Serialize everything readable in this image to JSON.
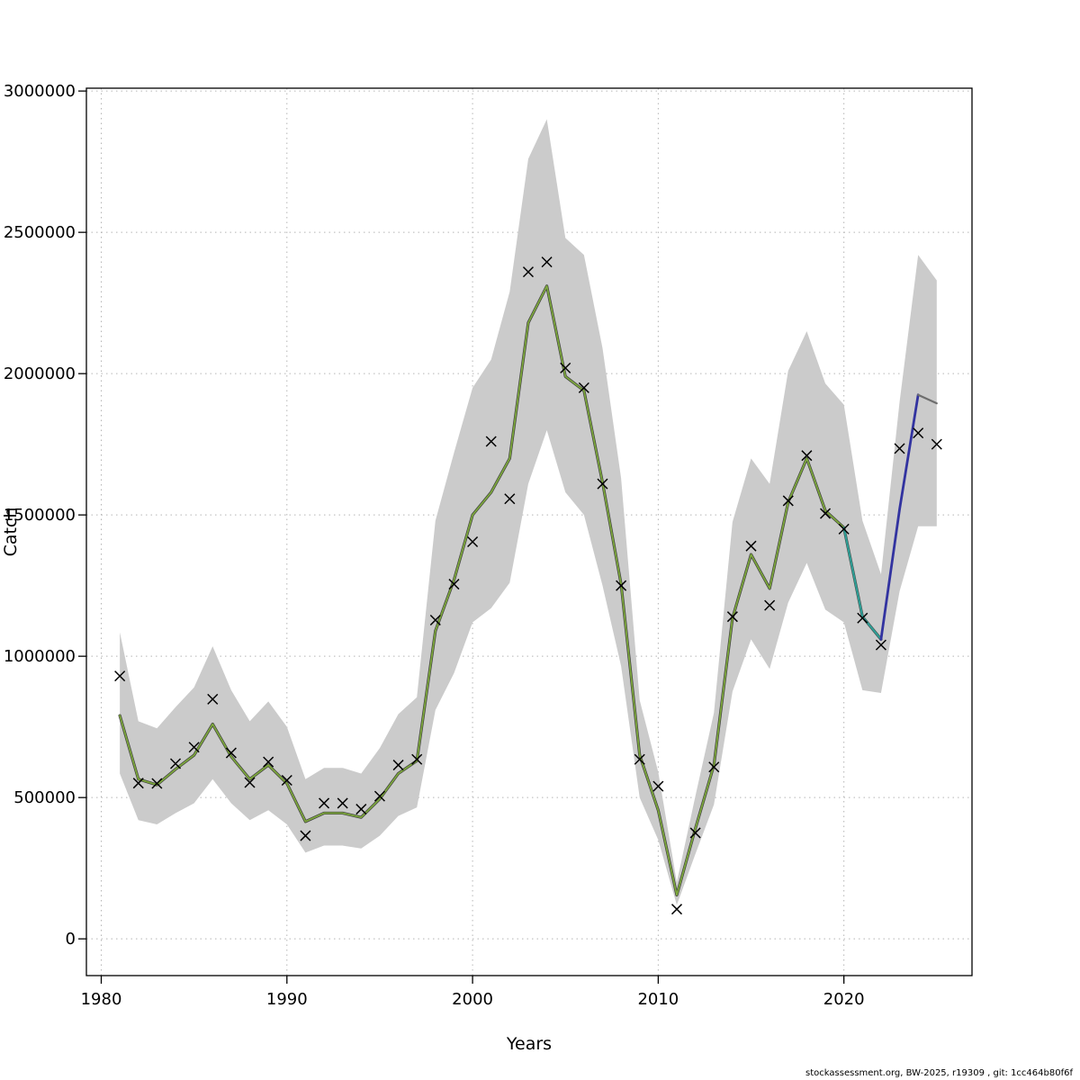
{
  "footer": {
    "text": "stockassessment.org, BW-2025, r19309 , git: 1cc464b80f6f"
  },
  "chart_data": {
    "type": "line",
    "title": "",
    "xlabel": "Years",
    "ylabel": "Catch",
    "xlim": [
      1979.2,
      2026.9
    ],
    "ylim": [
      -130000,
      3010000
    ],
    "x_ticks": [
      1980,
      1990,
      2000,
      2010,
      2020
    ],
    "y_ticks": [
      0,
      500000,
      1000000,
      1500000,
      2000000,
      2500000,
      3000000
    ],
    "grid": "dotted",
    "legend_position": "none",
    "colors": {
      "grid": "#b5b5b5",
      "axis": "#000000"
    },
    "years": [
      1981,
      1982,
      1983,
      1984,
      1985,
      1986,
      1987,
      1988,
      1989,
      1990,
      1991,
      1992,
      1993,
      1994,
      1995,
      1996,
      1997,
      1998,
      1999,
      2000,
      2001,
      2002,
      2003,
      2004,
      2005,
      2006,
      2007,
      2008,
      2009,
      2010,
      2011,
      2012,
      2013,
      2014,
      2015,
      2016,
      2017,
      2018,
      2019,
      2020,
      2021,
      2022,
      2023,
      2024,
      2025
    ],
    "band": {
      "name": "confidence-interval",
      "color": "#cbcbcb",
      "lower": [
        585000,
        420000,
        405000,
        445000,
        480000,
        565000,
        480000,
        420000,
        455000,
        405000,
        305000,
        330000,
        330000,
        320000,
        365000,
        435000,
        465000,
        810000,
        940000,
        1120000,
        1170000,
        1260000,
        1610000,
        1800000,
        1580000,
        1500000,
        1250000,
        965000,
        500000,
        350000,
        120000,
        300000,
        475000,
        875000,
        1060000,
        955000,
        1190000,
        1330000,
        1165000,
        1120000,
        880000,
        870000,
        1230000,
        1460000,
        1460000
      ],
      "upper": [
        1085000,
        770000,
        745000,
        820000,
        890000,
        1035000,
        880000,
        770000,
        840000,
        750000,
        565000,
        605000,
        605000,
        585000,
        675000,
        795000,
        855000,
        1480000,
        1720000,
        1950000,
        2050000,
        2290000,
        2760000,
        2900000,
        2480000,
        2420000,
        2090000,
        1630000,
        845000,
        590000,
        200000,
        505000,
        800000,
        1475000,
        1700000,
        1610000,
        2010000,
        2150000,
        1965000,
        1890000,
        1480000,
        1290000,
        1900000,
        2420000,
        2330000
      ]
    },
    "series": [
      {
        "name": "estimated-catch",
        "type": "line",
        "color": "#7da83c",
        "casing": "#3f3f3f",
        "width": 1.8,
        "x": [
          1981,
          1982,
          1983,
          1984,
          1985,
          1986,
          1987,
          1988,
          1989,
          1990,
          1991,
          1992,
          1993,
          1994,
          1995,
          1996,
          1997,
          1998,
          1999,
          2000,
          2001,
          2002,
          2003,
          2004,
          2005,
          2006,
          2007,
          2008,
          2009,
          2010,
          2011,
          2012,
          2013,
          2014,
          2015,
          2016,
          2017,
          2018,
          2019,
          2020,
          2021,
          2022
        ],
        "values": [
          790000,
          565000,
          545000,
          600000,
          650000,
          760000,
          645000,
          565000,
          615000,
          550000,
          415000,
          445000,
          445000,
          430000,
          495000,
          585000,
          630000,
          1090000,
          1270000,
          1500000,
          1580000,
          1700000,
          2180000,
          2310000,
          1990000,
          1940000,
          1615000,
          1255000,
          650000,
          455000,
          155000,
          390000,
          615000,
          1135000,
          1360000,
          1240000,
          1545000,
          1700000,
          1515000,
          1455000,
          1140000,
          1060000
        ]
      },
      {
        "name": "alternate-run-catch",
        "type": "line",
        "color": "#2e9e96",
        "width": 2.2,
        "x": [
          2020,
          2021,
          2022
        ],
        "values": [
          1455000,
          1140000,
          1060000
        ]
      },
      {
        "name": "forecast-catch",
        "type": "line",
        "color": "#3233a0",
        "width": 2.8,
        "x": [
          2022,
          2023,
          2024
        ],
        "values": [
          1060000,
          1520000,
          1925000
        ]
      },
      {
        "name": "forecast-extension",
        "type": "line",
        "color": "#6e6e6e",
        "width": 2.2,
        "x": [
          2024,
          2025
        ],
        "values": [
          1925000,
          1895000
        ]
      },
      {
        "name": "observed-catch",
        "type": "scatter",
        "marker": "x",
        "color": "#000000",
        "values": [
          930000,
          551000,
          550000,
          620000,
          678000,
          848000,
          658000,
          553000,
          626000,
          561000,
          365000,
          480000,
          480000,
          459000,
          505000,
          615000,
          635000,
          1128000,
          1255000,
          1405000,
          1760000,
          1557000,
          2360000,
          2395000,
          2020000,
          1950000,
          1610000,
          1250000,
          635000,
          540000,
          105000,
          375000,
          608000,
          1140000,
          1390000,
          1180000,
          1550000,
          1710000,
          1505000,
          1450000,
          1135000,
          1040000,
          1735000,
          1790000,
          1750000
        ]
      }
    ]
  }
}
